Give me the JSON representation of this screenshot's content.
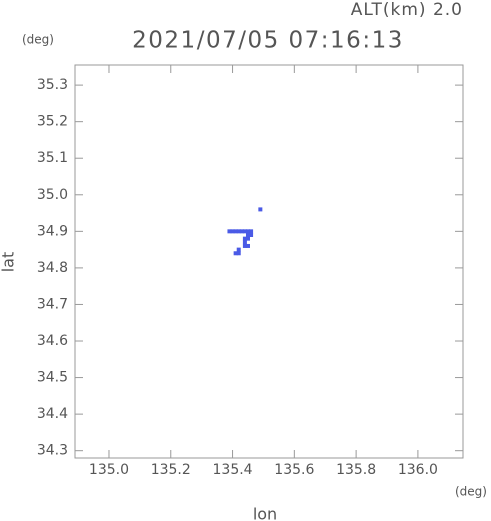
{
  "chart_data": {
    "type": "scatter",
    "title": "2021/07/05 07:16:13",
    "annotation": "ALT(km) 2.0",
    "y_unit": "(deg)",
    "x_unit": "(deg)",
    "x_label": "lon",
    "y_label": "lat",
    "xlim": [
      134.89,
      136.146
    ],
    "ylim": [
      34.28,
      35.355
    ],
    "xticks": [
      {
        "value": 135.0,
        "label": "135.0"
      },
      135.2,
      135.4,
      135.6,
      135.8,
      {
        "value": 136.0,
        "label": "136.0"
      }
    ],
    "yticks": [
      34.3,
      34.4,
      34.5,
      34.6,
      34.7,
      34.8,
      34.9,
      {
        "value": 35.0,
        "label": "35.0"
      },
      35.1,
      35.2,
      35.3
    ],
    "series": [
      {
        "color": "#4a5ae6",
        "x": [
          135.39,
          135.4,
          135.41,
          135.42,
          135.43,
          135.44,
          135.45,
          135.46,
          135.45,
          135.46,
          135.44,
          135.45,
          135.44,
          135.44,
          135.45,
          135.42,
          135.41,
          135.42,
          135.49
        ],
        "y": [
          34.9,
          34.9,
          34.9,
          34.9,
          34.9,
          34.9,
          34.9,
          34.9,
          34.89,
          34.89,
          34.88,
          34.88,
          34.87,
          34.86,
          34.86,
          34.85,
          34.84,
          34.84,
          34.96
        ]
      }
    ]
  }
}
